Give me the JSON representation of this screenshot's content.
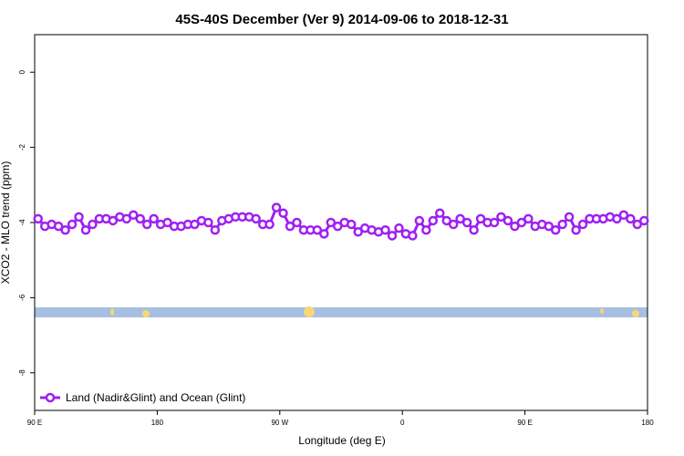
{
  "chart_data": {
    "type": "line",
    "title": "45S-40S December (Ver 9)   2014-09-06 to 2018-12-31",
    "x_label": "Longitude (deg E)",
    "y_label": "XCO2 - MLO trend (ppm)",
    "x": [
      92.5,
      97.5,
      102.5,
      107.5,
      112.5,
      117.5,
      122.5,
      127.5,
      132.5,
      137.5,
      142.5,
      147.5,
      152.5,
      157.5,
      162.5,
      167.5,
      172.5,
      177.5,
      182.5,
      187.5,
      192.5,
      197.5,
      202.5,
      207.5,
      212.5,
      217.5,
      222.5,
      227.5,
      232.5,
      237.5,
      242.5,
      247.5,
      252.5,
      257.5,
      262.5,
      267.5,
      272.5,
      277.5,
      282.5,
      287.5,
      292.5,
      297.5,
      302.5,
      307.5,
      312.5,
      317.5,
      322.5,
      327.5,
      332.5,
      337.5,
      342.5,
      347.5,
      352.5,
      357.5,
      362.5,
      367.5,
      372.5,
      377.5,
      382.5,
      387.5,
      392.5,
      397.5,
      402.5,
      407.5,
      412.5,
      417.5,
      422.5,
      427.5,
      432.5,
      437.5,
      442.5,
      447.5,
      452.5,
      457.5,
      462.5,
      467.5,
      472.5,
      477.5,
      482.5,
      487.5,
      492.5,
      497.5,
      502.5,
      507.5,
      512.5,
      517.5,
      522.5,
      527.5,
      532.5,
      537.5
    ],
    "series": [
      {
        "name": "Land (Nadir&Glint) and Ocean (Glint)",
        "color": "#a020f0",
        "values": [
          -3.9,
          -4.1,
          -4.05,
          -4.1,
          -4.2,
          -4.05,
          -3.85,
          -4.2,
          -4.05,
          -3.9,
          -3.9,
          -3.95,
          -3.85,
          -3.9,
          -3.8,
          -3.9,
          -4.05,
          -3.9,
          -4.05,
          -4.0,
          -4.1,
          -4.1,
          -4.05,
          -4.05,
          -3.95,
          -4.0,
          -4.2,
          -3.95,
          -3.9,
          -3.85,
          -3.85,
          -3.85,
          -3.9,
          -4.05,
          -4.05,
          -3.6,
          -3.75,
          -4.1,
          -4.0,
          -4.2,
          -4.2,
          -4.2,
          -4.3,
          -4.0,
          -4.1,
          -4.0,
          -4.05,
          -4.25,
          -4.15,
          -4.2,
          -4.25,
          -4.2,
          -4.35,
          -4.15,
          -4.3,
          -4.35,
          -3.95,
          -4.2,
          -3.95,
          -3.75,
          -3.95,
          -4.05,
          -3.9,
          -4.0,
          -4.2,
          -3.9,
          -4.0,
          -4.0,
          -3.85,
          -3.95,
          -4.1,
          -4.0,
          -3.9,
          -4.1,
          -4.05,
          -4.1,
          -4.2,
          -4.05,
          -3.85,
          -4.2,
          -4.05,
          -3.9,
          -3.9,
          -3.9,
          -3.85,
          -3.9,
          -3.8,
          -3.9,
          -4.05,
          -3.95
        ]
      }
    ],
    "xlim": [
      90,
      540
    ],
    "xticks": [
      {
        "value": 90,
        "label": "90 E"
      },
      180,
      {
        "value": 270,
        "label": "90 W"
      },
      {
        "value": 360,
        "label": "0"
      },
      {
        "value": 450,
        "label": "90 E"
      },
      {
        "value": 540,
        "label": "180"
      }
    ],
    "ylim": [
      -9,
      1
    ],
    "yticks": [
      0,
      -2,
      -4,
      -6,
      -8
    ],
    "grid": false,
    "legend": "bottom-left"
  }
}
